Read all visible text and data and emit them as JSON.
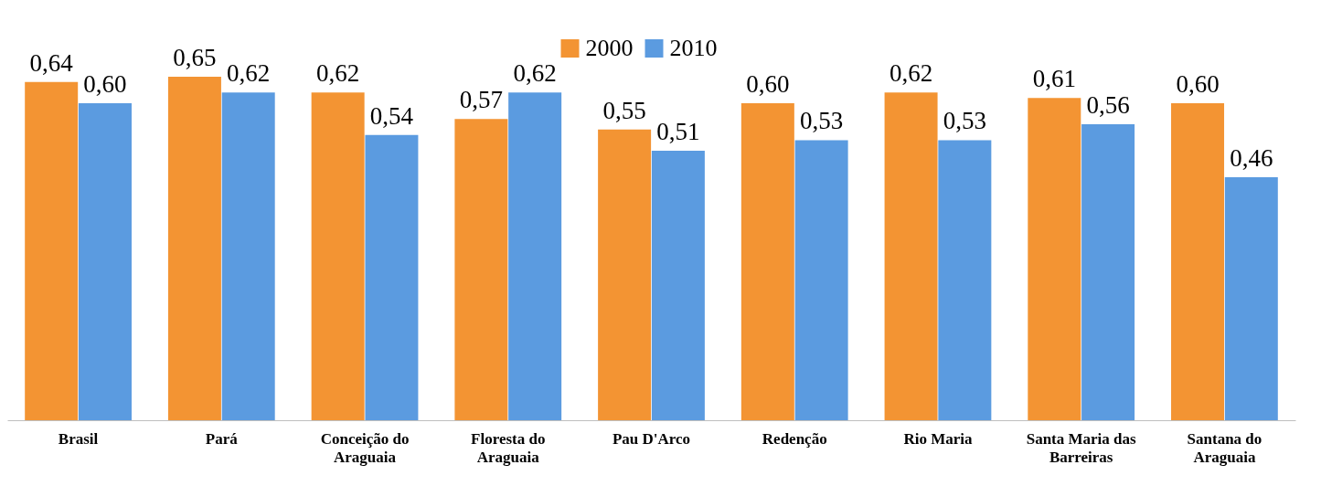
{
  "chart_data": {
    "type": "bar",
    "categories": [
      "Brasil",
      "Pará",
      "Conceição do Araguaia",
      "Floresta do Araguaia",
      "Pau D'Arco",
      "Redenção",
      "Rio Maria",
      "Santa Maria das Barreiras",
      "Santana do Araguaia"
    ],
    "series": [
      {
        "name": "2000",
        "color": "#f39433",
        "values": [
          0.64,
          0.65,
          0.62,
          0.57,
          0.55,
          0.6,
          0.62,
          0.61,
          0.6
        ],
        "value_labels": [
          "0,64",
          "0,65",
          "0,62",
          "0,57",
          "0,55",
          "0,60",
          "0,62",
          "0,61",
          "0,60"
        ]
      },
      {
        "name": "2010",
        "color": "#5b9be0",
        "values": [
          0.6,
          0.62,
          0.54,
          0.62,
          0.51,
          0.53,
          0.53,
          0.56,
          0.46
        ],
        "value_labels": [
          "0,60",
          "0,62",
          "0,54",
          "0,62",
          "0,51",
          "0,53",
          "0,53",
          "0,56",
          "0,46"
        ]
      }
    ],
    "legend": "top"
  }
}
